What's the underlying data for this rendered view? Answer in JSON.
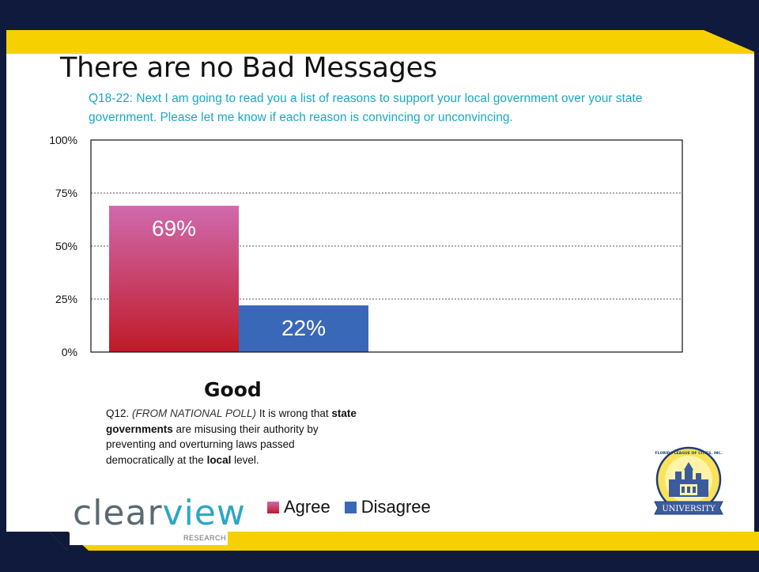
{
  "slide": {
    "title": "There are no Bad Messages",
    "subtitle_qnum": "Q18-22:",
    "subtitle_text": " Next I am going to read you a list of reasons to support your local government over your state government. Please let me know if each reason is convincing or unconvincing.",
    "category_label": "Good",
    "q12": {
      "prefix": "Q12. ",
      "italic": "(FROM NATIONAL POLL)",
      "part1": " It is wrong that ",
      "bold1": "state governments",
      "part2": " are misusing their authority by preventing and overturning laws passed democratically at the ",
      "bold2": "local",
      "part3": " level."
    },
    "logo": {
      "word_a": "clear",
      "word_b": "view",
      "sub": "RESEARCH"
    },
    "seal": {
      "banner": "UNIVERSITY",
      "arc_text": "FLORIDA LEAGUE OF CITIES, INC."
    },
    "colors": {
      "navy": "#101a3c",
      "gold": "#f6d000",
      "agree_top": "#d06aae",
      "agree_bottom": "#c01a28",
      "disagree": "#3a68b8",
      "subtitle": "#1aa8c4"
    }
  },
  "chart_data": {
    "type": "bar",
    "categories": [
      "Good"
    ],
    "series": [
      {
        "name": "Agree",
        "values": [
          69
        ],
        "label": "69%"
      },
      {
        "name": "Disagree",
        "values": [
          22
        ],
        "label": "22%"
      }
    ],
    "ylim": [
      0,
      100
    ],
    "yticks": [
      "0%",
      "25%",
      "50%",
      "75%",
      "100%"
    ],
    "ytick_values": [
      0,
      25,
      50,
      75,
      100
    ],
    "grid": true,
    "legend": "bottom"
  }
}
